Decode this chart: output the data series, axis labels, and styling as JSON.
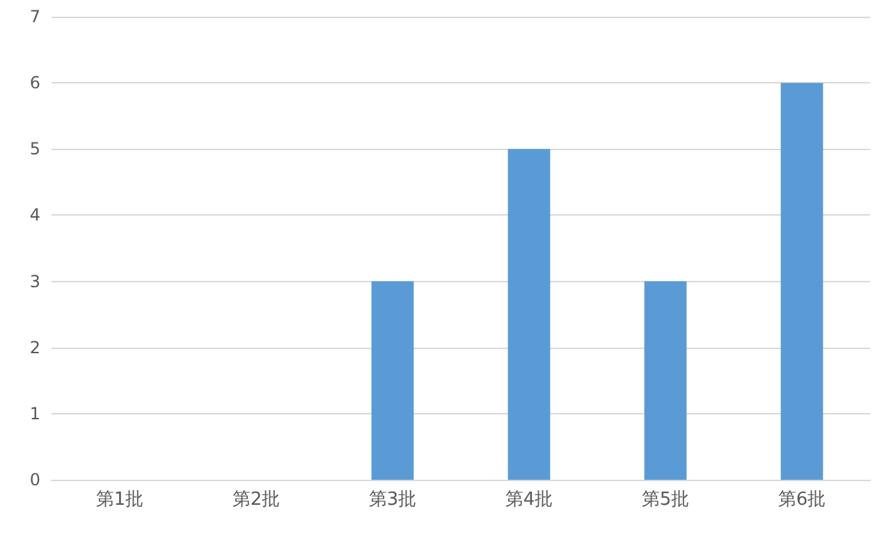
{
  "chart_data": {
    "type": "bar",
    "categories": [
      "第1批",
      "第2批",
      "第3批",
      "第4批",
      "第5批",
      "第6批"
    ],
    "values": [
      0,
      0,
      3,
      5,
      3,
      6
    ],
    "color": "#5b9bd5",
    "ylim": [
      0,
      7
    ],
    "yticks": [
      0,
      1,
      2,
      3,
      4,
      5,
      6,
      7
    ],
    "grid": "y"
  }
}
